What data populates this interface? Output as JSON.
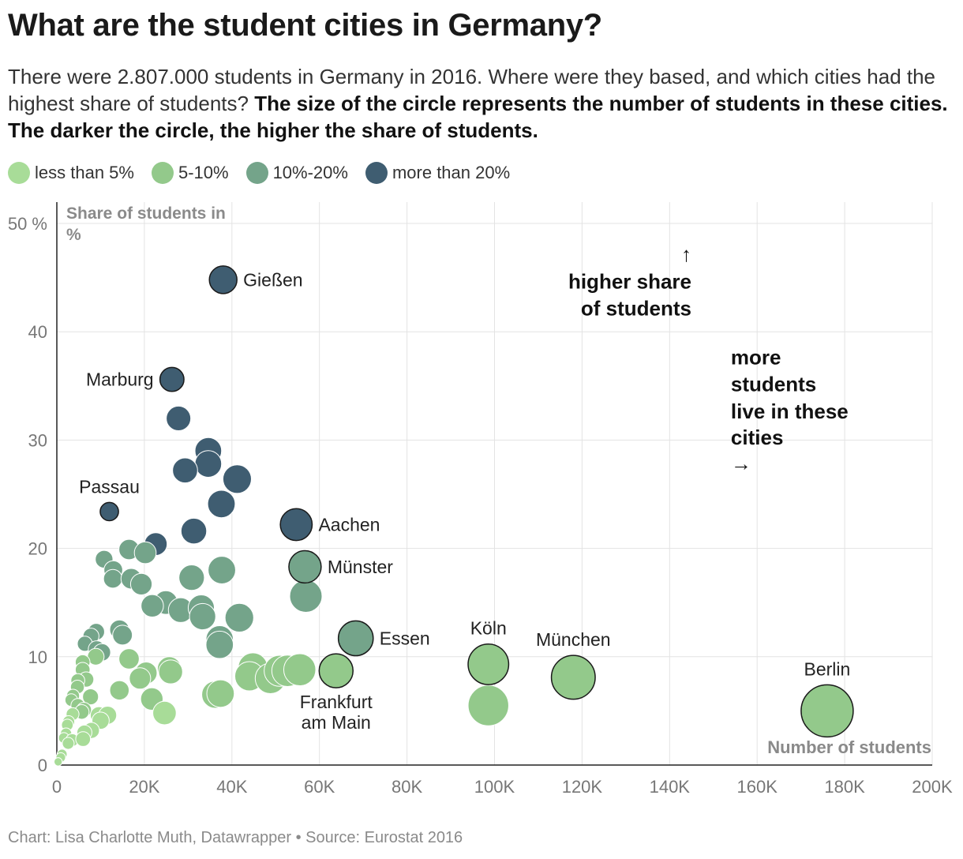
{
  "title": "What are the student cities in Germany?",
  "subtitle": {
    "plain": "There were 2.807.000 students in Germany in 2016. Where were they based, and which cities had the highest share of students? ",
    "bold": "The size of the circle represents the number of students in these cities. The darker the circle, the higher the share of students."
  },
  "legend": [
    {
      "label": "less than 5%",
      "color": "#a8dc98"
    },
    {
      "label": "5-10%",
      "color": "#93c98b"
    },
    {
      "label": "10%-20%",
      "color": "#74a48a"
    },
    {
      "label": "more than 20%",
      "color": "#3f5d71"
    }
  ],
  "footer": "Chart: Lisa Charlotte Muth, Datawrapper • Source: Eurostat 2016",
  "chart_data": {
    "type": "scatter",
    "title": "What are the student cities in Germany?",
    "xlabel": "Number of students",
    "ylabel": "Share of students in %",
    "xlim": [
      0,
      200000
    ],
    "ylim": [
      0,
      50
    ],
    "x_ticks": [
      0,
      20000,
      40000,
      60000,
      80000,
      100000,
      120000,
      140000,
      160000,
      180000,
      200000
    ],
    "x_tick_labels": [
      "0",
      "20K",
      "40K",
      "60K",
      "80K",
      "100K",
      "120K",
      "140K",
      "160K",
      "180K",
      "200K"
    ],
    "y_ticks": [
      0,
      10,
      20,
      30,
      40,
      50
    ],
    "y_tick_labels": [
      "0",
      "10",
      "20",
      "30",
      "40",
      "50 %"
    ],
    "grid": true,
    "annotations": [
      {
        "text": "↑",
        "x": 145000,
        "y": 46.5,
        "align": "right"
      },
      {
        "text": "higher share",
        "x": 145000,
        "y": 44.0,
        "align": "right"
      },
      {
        "text": "of students",
        "x": 145000,
        "y": 41.5,
        "align": "right"
      },
      {
        "text": "more",
        "x": 154000,
        "y": 37.0,
        "align": "left"
      },
      {
        "text": "students",
        "x": 154000,
        "y": 34.5,
        "align": "left"
      },
      {
        "text": "live in these",
        "x": 154000,
        "y": 32.0,
        "align": "left"
      },
      {
        "text": "cities",
        "x": 154000,
        "y": 29.6,
        "align": "left"
      },
      {
        "text": "→",
        "x": 154000,
        "y": 27.2,
        "align": "left"
      }
    ],
    "labeled_points": [
      {
        "label": "Gießen",
        "x": 38000,
        "y": 44.8,
        "group": "more than 20%",
        "label_pos": "right"
      },
      {
        "label": "Marburg",
        "x": 26300,
        "y": 35.6,
        "group": "more than 20%",
        "label_pos": "left"
      },
      {
        "label": "Passau",
        "x": 12000,
        "y": 23.4,
        "group": "more than 20%",
        "label_pos": "above"
      },
      {
        "label": "Aachen",
        "x": 54700,
        "y": 22.2,
        "group": "more than 20%",
        "label_pos": "right"
      },
      {
        "label": "Münster",
        "x": 56700,
        "y": 18.3,
        "group": "10%-20%",
        "label_pos": "right"
      },
      {
        "label": "Essen",
        "x": 68300,
        "y": 11.7,
        "group": "10%-20%",
        "label_pos": "right"
      },
      {
        "label": "Frankfurt am Main",
        "label_lines": [
          "Frankfurt",
          "am Main"
        ],
        "x": 63800,
        "y": 8.7,
        "group": "5-10%",
        "label_pos": "below"
      },
      {
        "label": "Köln",
        "x": 98600,
        "y": 9.3,
        "group": "5-10%",
        "label_pos": "above"
      },
      {
        "label": "München",
        "x": 118000,
        "y": 8.1,
        "group": "5-10%",
        "label_pos": "above"
      },
      {
        "label": "Berlin",
        "x": 176000,
        "y": 5.0,
        "group": "5-10%",
        "label_pos": "above"
      }
    ],
    "points": [
      {
        "x": 27800,
        "y": 32.0,
        "group": "more than 20%"
      },
      {
        "x": 34600,
        "y": 29.0,
        "group": "more than 20%"
      },
      {
        "x": 34600,
        "y": 27.8,
        "group": "more than 20%"
      },
      {
        "x": 29300,
        "y": 27.2,
        "group": "more than 20%"
      },
      {
        "x": 41200,
        "y": 26.4,
        "group": "more than 20%"
      },
      {
        "x": 37600,
        "y": 24.1,
        "group": "more than 20%"
      },
      {
        "x": 31300,
        "y": 21.6,
        "group": "more than 20%"
      },
      {
        "x": 22600,
        "y": 20.4,
        "group": "more than 20%"
      },
      {
        "x": 10800,
        "y": 19.0,
        "group": "10%-20%"
      },
      {
        "x": 16500,
        "y": 19.9,
        "group": "10%-20%"
      },
      {
        "x": 20200,
        "y": 19.6,
        "group": "10%-20%"
      },
      {
        "x": 12900,
        "y": 18.0,
        "group": "10%-20%"
      },
      {
        "x": 12800,
        "y": 17.2,
        "group": "10%-20%"
      },
      {
        "x": 17000,
        "y": 17.2,
        "group": "10%-20%"
      },
      {
        "x": 19300,
        "y": 16.7,
        "group": "10%-20%"
      },
      {
        "x": 30800,
        "y": 17.3,
        "group": "10%-20%"
      },
      {
        "x": 37700,
        "y": 18.0,
        "group": "10%-20%"
      },
      {
        "x": 56900,
        "y": 15.6,
        "group": "10%-20%"
      },
      {
        "x": 24900,
        "y": 15.0,
        "group": "10%-20%"
      },
      {
        "x": 21800,
        "y": 14.7,
        "group": "10%-20%"
      },
      {
        "x": 28300,
        "y": 14.3,
        "group": "10%-20%"
      },
      {
        "x": 33000,
        "y": 14.5,
        "group": "10%-20%"
      },
      {
        "x": 33300,
        "y": 13.7,
        "group": "10%-20%"
      },
      {
        "x": 41700,
        "y": 13.6,
        "group": "10%-20%"
      },
      {
        "x": 37200,
        "y": 11.6,
        "group": "10%-20%"
      },
      {
        "x": 37200,
        "y": 11.1,
        "group": "10%-20%"
      },
      {
        "x": 14300,
        "y": 12.5,
        "group": "10%-20%"
      },
      {
        "x": 15000,
        "y": 12.0,
        "group": "10%-20%"
      },
      {
        "x": 9000,
        "y": 12.3,
        "group": "10%-20%"
      },
      {
        "x": 7800,
        "y": 11.9,
        "group": "10%-20%"
      },
      {
        "x": 6400,
        "y": 11.2,
        "group": "10%-20%"
      },
      {
        "x": 9100,
        "y": 10.7,
        "group": "10%-20%"
      },
      {
        "x": 10300,
        "y": 10.4,
        "group": "10%-20%"
      },
      {
        "x": 8900,
        "y": 10.0,
        "group": "5-10%"
      },
      {
        "x": 16500,
        "y": 9.8,
        "group": "5-10%"
      },
      {
        "x": 5900,
        "y": 9.5,
        "group": "5-10%"
      },
      {
        "x": 5900,
        "y": 8.8,
        "group": "5-10%"
      },
      {
        "x": 25700,
        "y": 8.9,
        "group": "5-10%"
      },
      {
        "x": 26000,
        "y": 8.6,
        "group": "5-10%"
      },
      {
        "x": 20400,
        "y": 8.5,
        "group": "5-10%"
      },
      {
        "x": 19000,
        "y": 8.0,
        "group": "5-10%"
      },
      {
        "x": 44800,
        "y": 9.0,
        "group": "5-10%"
      },
      {
        "x": 44000,
        "y": 8.2,
        "group": "5-10%"
      },
      {
        "x": 48800,
        "y": 8.0,
        "group": "5-10%"
      },
      {
        "x": 50900,
        "y": 8.7,
        "group": "5-10%"
      },
      {
        "x": 52700,
        "y": 8.7,
        "group": "5-10%"
      },
      {
        "x": 55500,
        "y": 8.8,
        "group": "5-10%"
      },
      {
        "x": 6700,
        "y": 7.9,
        "group": "5-10%"
      },
      {
        "x": 4800,
        "y": 7.8,
        "group": "5-10%"
      },
      {
        "x": 4700,
        "y": 7.2,
        "group": "5-10%"
      },
      {
        "x": 14300,
        "y": 6.9,
        "group": "5-10%"
      },
      {
        "x": 36200,
        "y": 6.5,
        "group": "5-10%"
      },
      {
        "x": 37400,
        "y": 6.6,
        "group": "5-10%"
      },
      {
        "x": 21700,
        "y": 6.1,
        "group": "5-10%"
      },
      {
        "x": 7700,
        "y": 6.3,
        "group": "5-10%"
      },
      {
        "x": 3700,
        "y": 6.4,
        "group": "5-10%"
      },
      {
        "x": 3300,
        "y": 6.0,
        "group": "5-10%"
      },
      {
        "x": 4800,
        "y": 5.5,
        "group": "5-10%"
      },
      {
        "x": 98600,
        "y": 5.5,
        "group": "5-10%"
      },
      {
        "x": 6200,
        "y": 5.1,
        "group": "5-10%"
      },
      {
        "x": 5700,
        "y": 4.9,
        "group": "5-10%"
      },
      {
        "x": 24600,
        "y": 4.8,
        "group": "less than 5%"
      },
      {
        "x": 3600,
        "y": 4.7,
        "group": "less than 5%"
      },
      {
        "x": 9600,
        "y": 4.6,
        "group": "less than 5%"
      },
      {
        "x": 11600,
        "y": 4.6,
        "group": "less than 5%"
      },
      {
        "x": 10000,
        "y": 4.1,
        "group": "less than 5%"
      },
      {
        "x": 2700,
        "y": 4.0,
        "group": "less than 5%"
      },
      {
        "x": 2400,
        "y": 3.7,
        "group": "less than 5%"
      },
      {
        "x": 7900,
        "y": 3.2,
        "group": "less than 5%"
      },
      {
        "x": 6300,
        "y": 3.0,
        "group": "less than 5%"
      },
      {
        "x": 2100,
        "y": 2.9,
        "group": "less than 5%"
      },
      {
        "x": 1600,
        "y": 2.5,
        "group": "less than 5%"
      },
      {
        "x": 3500,
        "y": 2.3,
        "group": "less than 5%"
      },
      {
        "x": 6000,
        "y": 2.4,
        "group": "less than 5%"
      },
      {
        "x": 2600,
        "y": 2.0,
        "group": "less than 5%"
      },
      {
        "x": 1200,
        "y": 1.0,
        "group": "less than 5%"
      },
      {
        "x": 900,
        "y": 0.7,
        "group": "less than 5%"
      },
      {
        "x": 300,
        "y": 0.3,
        "group": "less than 5%"
      }
    ]
  }
}
